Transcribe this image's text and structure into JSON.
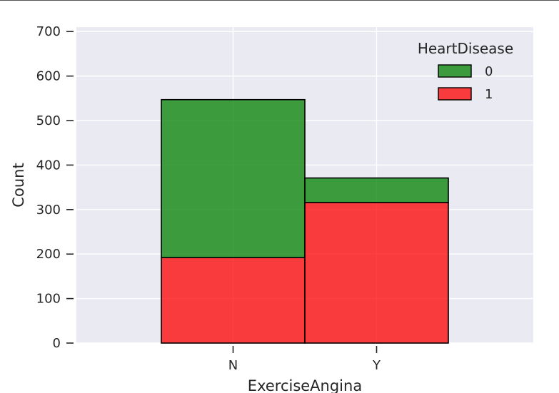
{
  "chart_data": {
    "type": "bar",
    "stacked": true,
    "categories": [
      "N",
      "Y"
    ],
    "series": [
      {
        "name": "0",
        "values": [
          355,
          55
        ],
        "color": "#008000"
      },
      {
        "name": "1",
        "values": [
          192,
          316
        ],
        "color": "#ff0000"
      }
    ],
    "xlabel": "ExerciseAngina",
    "ylabel": "Count",
    "ylim": [
      0,
      710
    ],
    "yticks": [
      0,
      100,
      200,
      300,
      400,
      500,
      600,
      700
    ],
    "grid": true,
    "legend_title": "HeartDisease",
    "legend_position": "top-right",
    "background": "#eaeaf2",
    "edge_color": "#000000"
  }
}
